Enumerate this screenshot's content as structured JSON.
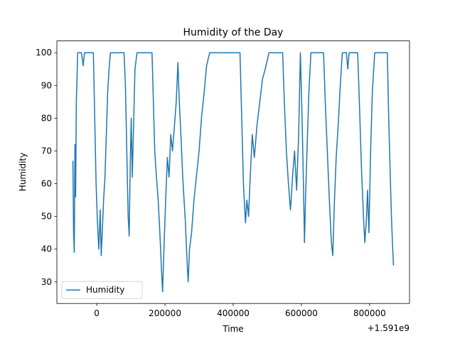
{
  "chart_data": {
    "type": "line",
    "title": "Humidity of the Day",
    "x_label": "Time",
    "y_label": "Humidity",
    "x_offset_label": "+1.591e9",
    "x": [
      1590930000,
      1590932000,
      1590934000,
      1590936000,
      1590938000,
      1590940000,
      1590942000,
      1590944000,
      1590955000,
      1590960000,
      1590964000,
      1590990000,
      1590994000,
      1590998000,
      1591002000,
      1591006000,
      1591010000,
      1591013000,
      1591016000,
      1591020000,
      1591024000,
      1591028000,
      1591032000,
      1591036000,
      1591040000,
      1591080000,
      1591084000,
      1591088000,
      1591092000,
      1591095000,
      1591098000,
      1591101000,
      1591104000,
      1591108000,
      1591112000,
      1591118000,
      1591162000,
      1591166000,
      1591170000,
      1591175000,
      1591180000,
      1591185000,
      1591190000,
      1591193000,
      1591197000,
      1591202000,
      1591207000,
      1591212000,
      1591217000,
      1591222000,
      1591228000,
      1591233000,
      1591238000,
      1591242000,
      1591248000,
      1591252000,
      1591256000,
      1591260000,
      1591264000,
      1591268000,
      1591272000,
      1591278000,
      1591285000,
      1591292000,
      1591300000,
      1591307000,
      1591315000,
      1591322000,
      1591331000,
      1591420000,
      1591425000,
      1591430000,
      1591436000,
      1591440000,
      1591445000,
      1591450000,
      1591456000,
      1591462000,
      1591470000,
      1591478000,
      1591486000,
      1591494000,
      1591505000,
      1591545000,
      1591550000,
      1591556000,
      1591562000,
      1591568000,
      1591574000,
      1591580000,
      1591586000,
      1591592000,
      1591597000,
      1591602000,
      1591606000,
      1591609000,
      1591612000,
      1591617000,
      1591622000,
      1591628000,
      1591665000,
      1591670000,
      1591676000,
      1591682000,
      1591688000,
      1591692000,
      1591697000,
      1591702000,
      1591708000,
      1591714000,
      1591720000,
      1591732000,
      1591736000,
      1591740000,
      1591765000,
      1591770000,
      1591776000,
      1591782000,
      1591786000,
      1591790000,
      1591794000,
      1591798000,
      1591803000,
      1591808000,
      1591815000,
      1591852000,
      1591856000,
      1591860000,
      1591864000,
      1591867000,
      1591870000
    ],
    "series": [
      {
        "name": "Humidity",
        "color": "#1f77b4",
        "values": [
          67,
          45,
          39,
          72,
          56,
          85,
          92,
          100,
          100,
          96,
          100,
          100,
          80,
          60,
          48,
          40,
          52,
          38,
          45,
          55,
          62,
          75,
          88,
          95,
          100,
          100,
          90,
          70,
          50,
          44,
          65,
          80,
          62,
          78,
          95,
          100,
          100,
          85,
          70,
          62,
          55,
          45,
          33,
          27,
          40,
          55,
          68,
          62,
          75,
          70,
          78,
          85,
          97,
          85,
          72,
          62,
          55,
          48,
          38,
          30,
          40,
          45,
          55,
          62,
          70,
          80,
          88,
          96,
          100,
          100,
          80,
          60,
          48,
          55,
          50,
          62,
          75,
          68,
          78,
          85,
          92,
          95,
          100,
          100,
          85,
          70,
          60,
          52,
          62,
          70,
          58,
          75,
          100,
          80,
          60,
          42,
          55,
          72,
          88,
          100,
          100,
          85,
          70,
          55,
          42,
          38,
          55,
          68,
          78,
          90,
          100,
          100,
          95,
          100,
          100,
          85,
          65,
          50,
          42,
          48,
          58,
          45,
          70,
          88,
          100,
          100,
          80,
          65,
          50,
          42,
          35
        ]
      }
    ],
    "xlim": [
      1590883000,
      1591917000
    ],
    "ylim": [
      23.4,
      103.6
    ],
    "xticks": [
      {
        "value": 1591000000,
        "label": "0"
      },
      {
        "value": 1591200000,
        "label": "200000"
      },
      {
        "value": 1591400000,
        "label": "400000"
      },
      {
        "value": 1591600000,
        "label": "600000"
      },
      {
        "value": 1591800000,
        "label": "800000"
      }
    ],
    "yticks": [
      30,
      40,
      50,
      60,
      70,
      80,
      90,
      100
    ],
    "legend": "lower left"
  }
}
